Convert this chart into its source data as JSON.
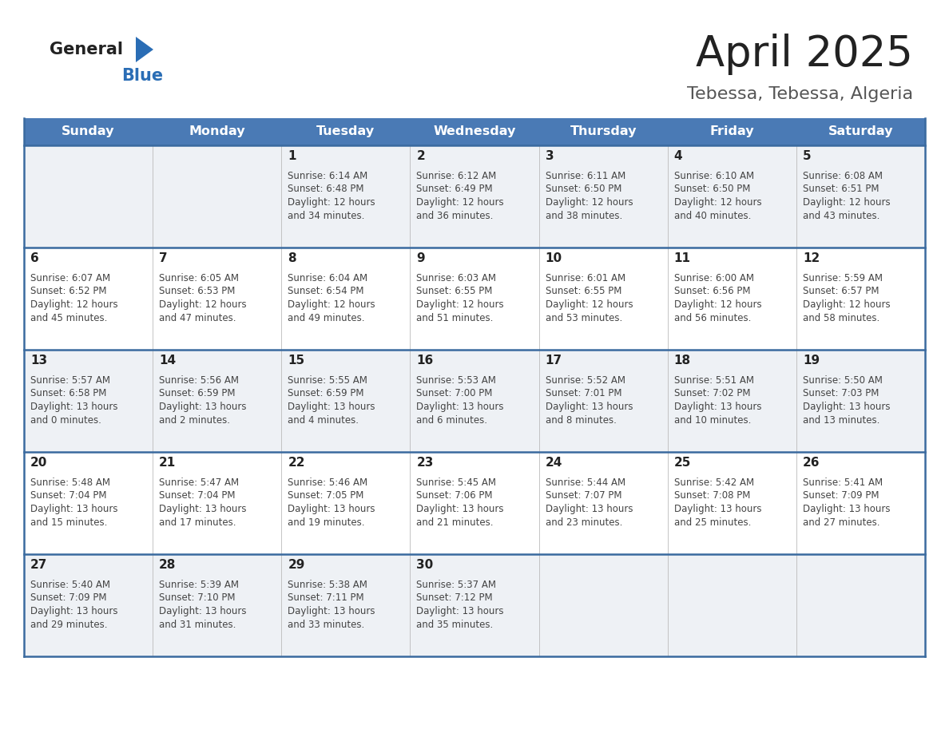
{
  "title": "April 2025",
  "subtitle": "Tebessa, Tebessa, Algeria",
  "days_of_week": [
    "Sunday",
    "Monday",
    "Tuesday",
    "Wednesday",
    "Thursday",
    "Friday",
    "Saturday"
  ],
  "header_bg": "#4a7ab5",
  "header_text": "#ffffff",
  "row_bg_odd": "#eef1f5",
  "row_bg_even": "#ffffff",
  "separator_color": "#3a6a9f",
  "title_color": "#222222",
  "subtitle_color": "#555555",
  "day_number_color": "#222222",
  "cell_text_color": "#444444",
  "logo_general_color": "#222222",
  "logo_blue_color": "#2a6db5",
  "logo_triangle_color": "#2a6db5",
  "calendar_data": [
    [
      {
        "day": "",
        "info": ""
      },
      {
        "day": "",
        "info": ""
      },
      {
        "day": "1",
        "info": "Sunrise: 6:14 AM\nSunset: 6:48 PM\nDaylight: 12 hours\nand 34 minutes."
      },
      {
        "day": "2",
        "info": "Sunrise: 6:12 AM\nSunset: 6:49 PM\nDaylight: 12 hours\nand 36 minutes."
      },
      {
        "day": "3",
        "info": "Sunrise: 6:11 AM\nSunset: 6:50 PM\nDaylight: 12 hours\nand 38 minutes."
      },
      {
        "day": "4",
        "info": "Sunrise: 6:10 AM\nSunset: 6:50 PM\nDaylight: 12 hours\nand 40 minutes."
      },
      {
        "day": "5",
        "info": "Sunrise: 6:08 AM\nSunset: 6:51 PM\nDaylight: 12 hours\nand 43 minutes."
      }
    ],
    [
      {
        "day": "6",
        "info": "Sunrise: 6:07 AM\nSunset: 6:52 PM\nDaylight: 12 hours\nand 45 minutes."
      },
      {
        "day": "7",
        "info": "Sunrise: 6:05 AM\nSunset: 6:53 PM\nDaylight: 12 hours\nand 47 minutes."
      },
      {
        "day": "8",
        "info": "Sunrise: 6:04 AM\nSunset: 6:54 PM\nDaylight: 12 hours\nand 49 minutes."
      },
      {
        "day": "9",
        "info": "Sunrise: 6:03 AM\nSunset: 6:55 PM\nDaylight: 12 hours\nand 51 minutes."
      },
      {
        "day": "10",
        "info": "Sunrise: 6:01 AM\nSunset: 6:55 PM\nDaylight: 12 hours\nand 53 minutes."
      },
      {
        "day": "11",
        "info": "Sunrise: 6:00 AM\nSunset: 6:56 PM\nDaylight: 12 hours\nand 56 minutes."
      },
      {
        "day": "12",
        "info": "Sunrise: 5:59 AM\nSunset: 6:57 PM\nDaylight: 12 hours\nand 58 minutes."
      }
    ],
    [
      {
        "day": "13",
        "info": "Sunrise: 5:57 AM\nSunset: 6:58 PM\nDaylight: 13 hours\nand 0 minutes."
      },
      {
        "day": "14",
        "info": "Sunrise: 5:56 AM\nSunset: 6:59 PM\nDaylight: 13 hours\nand 2 minutes."
      },
      {
        "day": "15",
        "info": "Sunrise: 5:55 AM\nSunset: 6:59 PM\nDaylight: 13 hours\nand 4 minutes."
      },
      {
        "day": "16",
        "info": "Sunrise: 5:53 AM\nSunset: 7:00 PM\nDaylight: 13 hours\nand 6 minutes."
      },
      {
        "day": "17",
        "info": "Sunrise: 5:52 AM\nSunset: 7:01 PM\nDaylight: 13 hours\nand 8 minutes."
      },
      {
        "day": "18",
        "info": "Sunrise: 5:51 AM\nSunset: 7:02 PM\nDaylight: 13 hours\nand 10 minutes."
      },
      {
        "day": "19",
        "info": "Sunrise: 5:50 AM\nSunset: 7:03 PM\nDaylight: 13 hours\nand 13 minutes."
      }
    ],
    [
      {
        "day": "20",
        "info": "Sunrise: 5:48 AM\nSunset: 7:04 PM\nDaylight: 13 hours\nand 15 minutes."
      },
      {
        "day": "21",
        "info": "Sunrise: 5:47 AM\nSunset: 7:04 PM\nDaylight: 13 hours\nand 17 minutes."
      },
      {
        "day": "22",
        "info": "Sunrise: 5:46 AM\nSunset: 7:05 PM\nDaylight: 13 hours\nand 19 minutes."
      },
      {
        "day": "23",
        "info": "Sunrise: 5:45 AM\nSunset: 7:06 PM\nDaylight: 13 hours\nand 21 minutes."
      },
      {
        "day": "24",
        "info": "Sunrise: 5:44 AM\nSunset: 7:07 PM\nDaylight: 13 hours\nand 23 minutes."
      },
      {
        "day": "25",
        "info": "Sunrise: 5:42 AM\nSunset: 7:08 PM\nDaylight: 13 hours\nand 25 minutes."
      },
      {
        "day": "26",
        "info": "Sunrise: 5:41 AM\nSunset: 7:09 PM\nDaylight: 13 hours\nand 27 minutes."
      }
    ],
    [
      {
        "day": "27",
        "info": "Sunrise: 5:40 AM\nSunset: 7:09 PM\nDaylight: 13 hours\nand 29 minutes."
      },
      {
        "day": "28",
        "info": "Sunrise: 5:39 AM\nSunset: 7:10 PM\nDaylight: 13 hours\nand 31 minutes."
      },
      {
        "day": "29",
        "info": "Sunrise: 5:38 AM\nSunset: 7:11 PM\nDaylight: 13 hours\nand 33 minutes."
      },
      {
        "day": "30",
        "info": "Sunrise: 5:37 AM\nSunset: 7:12 PM\nDaylight: 13 hours\nand 35 minutes."
      },
      {
        "day": "",
        "info": ""
      },
      {
        "day": "",
        "info": ""
      },
      {
        "day": "",
        "info": ""
      }
    ]
  ]
}
